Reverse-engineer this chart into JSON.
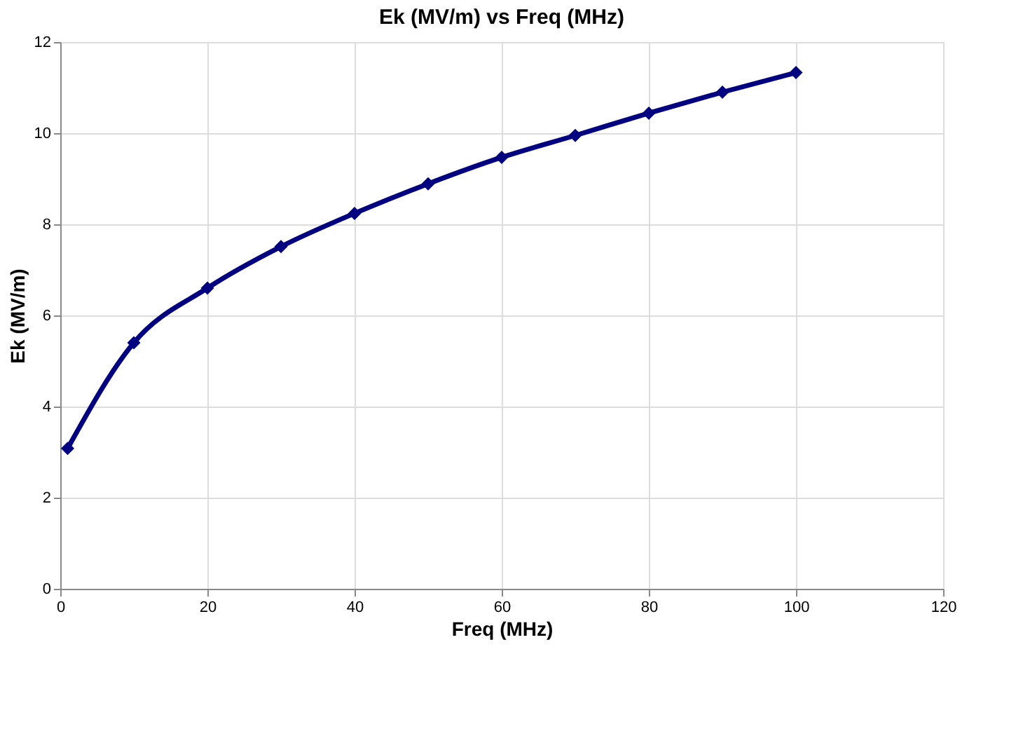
{
  "chart_data": {
    "type": "line",
    "title": "Ek (MV/m) vs Freq (MHz)",
    "xlabel": "Freq (MHz)",
    "ylabel": "Ek (MV/m)",
    "x": [
      1,
      10,
      20,
      30,
      40,
      50,
      60,
      70,
      80,
      90,
      100
    ],
    "series": [
      {
        "color": "#000080",
        "values": [
          3.08,
          5.4,
          6.6,
          7.51,
          8.24,
          8.89,
          9.47,
          9.95,
          10.44,
          10.9,
          11.33
        ]
      }
    ],
    "xlim": [
      0,
      120
    ],
    "xticks": [
      0,
      20,
      40,
      60,
      80,
      100,
      120
    ],
    "ylim": [
      0,
      12
    ],
    "yticks": [
      0,
      2,
      4,
      6,
      8,
      10,
      12
    ],
    "grid": true,
    "marker": "diamond",
    "line_style": "solid"
  }
}
